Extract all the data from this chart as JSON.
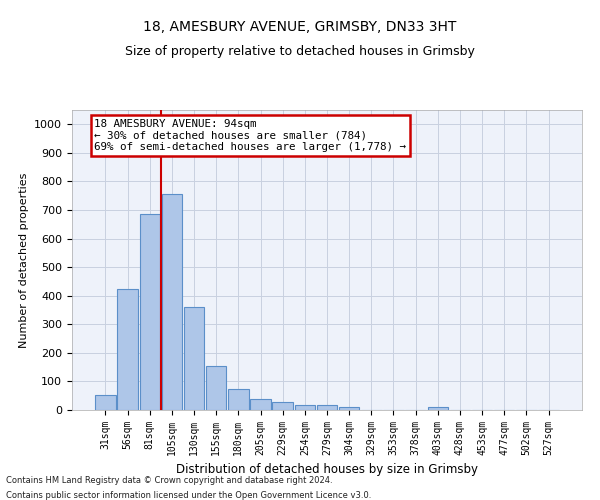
{
  "title": "18, AMESBURY AVENUE, GRIMSBY, DN33 3HT",
  "subtitle": "Size of property relative to detached houses in Grimsby",
  "xlabel": "Distribution of detached houses by size in Grimsby",
  "ylabel": "Number of detached properties",
  "bar_color": "#aec6e8",
  "bar_edge_color": "#5b8fc9",
  "categories": [
    "31sqm",
    "56sqm",
    "81sqm",
    "105sqm",
    "130sqm",
    "155sqm",
    "180sqm",
    "205sqm",
    "229sqm",
    "254sqm",
    "279sqm",
    "304sqm",
    "329sqm",
    "353sqm",
    "378sqm",
    "403sqm",
    "428sqm",
    "453sqm",
    "477sqm",
    "502sqm",
    "527sqm"
  ],
  "values": [
    52,
    422,
    685,
    757,
    360,
    153,
    73,
    40,
    27,
    17,
    17,
    10,
    0,
    0,
    0,
    10,
    0,
    0,
    0,
    0,
    0
  ],
  "ylim": [
    0,
    1050
  ],
  "yticks": [
    0,
    100,
    200,
    300,
    400,
    500,
    600,
    700,
    800,
    900,
    1000
  ],
  "vline_x": 2.5,
  "vline_color": "#cc0000",
  "annotation_line1": "18 AMESBURY AVENUE: 94sqm",
  "annotation_line2": "← 30% of detached houses are smaller (784)",
  "annotation_line3": "69% of semi-detached houses are larger (1,778) →",
  "footer_line1": "Contains HM Land Registry data © Crown copyright and database right 2024.",
  "footer_line2": "Contains public sector information licensed under the Open Government Licence v3.0.",
  "grid_color": "#c8d0e0",
  "background_color": "#eef2fa"
}
